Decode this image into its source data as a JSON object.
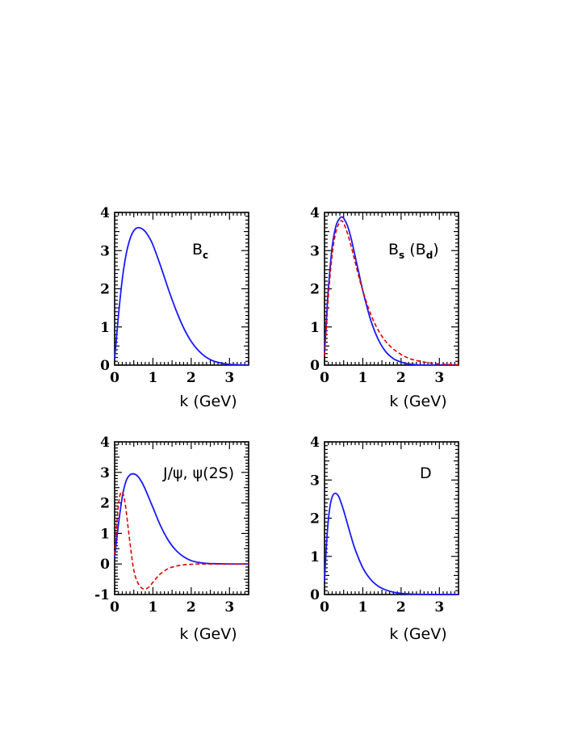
{
  "chart_data": [
    {
      "type": "line",
      "label": {
        "main": "B",
        "sub": "c",
        "suffix": ""
      },
      "xlabel": "k (GeV)",
      "xlim": [
        0,
        3.5
      ],
      "ylim": [
        0,
        4
      ],
      "xticks": [
        "0",
        "1",
        "2",
        "3"
      ],
      "yticks": [
        "0",
        "1",
        "2",
        "3",
        "4"
      ],
      "series": [
        {
          "style": "solid",
          "color": "#1a1aff",
          "x": [
            0,
            0.1,
            0.2,
            0.3,
            0.4,
            0.5,
            0.6,
            0.7,
            0.8,
            0.9,
            1.0,
            1.2,
            1.4,
            1.6,
            1.8,
            2.0,
            2.2,
            2.4,
            2.6,
            2.8,
            3.0,
            3.2,
            3.5
          ],
          "y": [
            0.15,
            1.3,
            2.25,
            2.9,
            3.3,
            3.52,
            3.6,
            3.58,
            3.5,
            3.35,
            3.15,
            2.6,
            2.0,
            1.45,
            0.98,
            0.62,
            0.37,
            0.2,
            0.1,
            0.05,
            0.02,
            0.01,
            0.0
          ]
        }
      ]
    },
    {
      "type": "line",
      "label": {
        "main": "B",
        "sub": "s",
        "suffix": " (B",
        "sub2": "d",
        "suffix2": ")"
      },
      "xlabel": "k (GeV)",
      "xlim": [
        0,
        3.5
      ],
      "ylim": [
        0,
        4
      ],
      "xticks": [
        "0",
        "1",
        "2",
        "3"
      ],
      "yticks": [
        "0",
        "1",
        "2",
        "3",
        "4"
      ],
      "series": [
        {
          "style": "solid",
          "color": "#1a1aff",
          "x": [
            0,
            0.05,
            0.1,
            0.2,
            0.3,
            0.4,
            0.45,
            0.5,
            0.6,
            0.7,
            0.8,
            0.9,
            1.0,
            1.2,
            1.4,
            1.6,
            1.8,
            2.0,
            2.2,
            2.4,
            2.6,
            3.0,
            3.5
          ],
          "y": [
            0.3,
            1.2,
            2.0,
            3.1,
            3.65,
            3.85,
            3.88,
            3.85,
            3.65,
            3.3,
            2.85,
            2.4,
            1.95,
            1.2,
            0.68,
            0.35,
            0.17,
            0.08,
            0.03,
            0.01,
            0.0,
            0.0,
            0.0
          ]
        },
        {
          "style": "dashed",
          "color": "#e00000",
          "x": [
            0,
            0.05,
            0.1,
            0.2,
            0.3,
            0.4,
            0.45,
            0.5,
            0.6,
            0.7,
            0.8,
            0.9,
            1.0,
            1.2,
            1.4,
            1.6,
            1.8,
            2.0,
            2.2,
            2.4,
            2.6,
            2.8,
            3.0,
            3.2,
            3.5
          ],
          "y": [
            0.25,
            1.0,
            1.8,
            2.9,
            3.5,
            3.75,
            3.78,
            3.72,
            3.45,
            3.1,
            2.7,
            2.3,
            1.95,
            1.35,
            0.92,
            0.62,
            0.42,
            0.28,
            0.18,
            0.12,
            0.08,
            0.05,
            0.03,
            0.02,
            0.01
          ]
        }
      ]
    },
    {
      "type": "line",
      "label": {
        "main": "J/ψ, ψ(2S)",
        "sub": "",
        "suffix": ""
      },
      "xlabel": "k (GeV)",
      "xlim": [
        0,
        3.5
      ],
      "ylim": [
        -1,
        4
      ],
      "xticks": [
        "0",
        "1",
        "2",
        "3"
      ],
      "yticks": [
        "-1",
        "0",
        "1",
        "2",
        "3",
        "4"
      ],
      "series": [
        {
          "style": "solid",
          "color": "#1a1aff",
          "x": [
            0,
            0.1,
            0.2,
            0.3,
            0.4,
            0.5,
            0.6,
            0.7,
            0.8,
            0.9,
            1.0,
            1.2,
            1.4,
            1.6,
            1.8,
            2.0,
            2.2,
            2.4,
            2.6,
            3.0,
            3.5
          ],
          "y": [
            0.2,
            1.3,
            2.2,
            2.72,
            2.92,
            2.95,
            2.88,
            2.7,
            2.45,
            2.15,
            1.85,
            1.25,
            0.78,
            0.45,
            0.24,
            0.11,
            0.05,
            0.02,
            0.01,
            0.0,
            0.0
          ]
        },
        {
          "style": "dashed",
          "color": "#e00000",
          "x": [
            0,
            0.05,
            0.1,
            0.15,
            0.2,
            0.25,
            0.3,
            0.4,
            0.5,
            0.6,
            0.7,
            0.8,
            0.9,
            1.0,
            1.1,
            1.2,
            1.4,
            1.6,
            1.8,
            2.0,
            2.2,
            2.5,
            3.0,
            3.5
          ],
          "y": [
            0.3,
            1.2,
            1.95,
            2.3,
            2.35,
            2.15,
            1.75,
            0.7,
            -0.2,
            -0.6,
            -0.78,
            -0.82,
            -0.75,
            -0.6,
            -0.45,
            -0.32,
            -0.15,
            -0.07,
            -0.03,
            -0.01,
            0.0,
            0.0,
            0.0,
            0.0
          ]
        }
      ]
    },
    {
      "type": "line",
      "label": {
        "main": "D",
        "sub": "",
        "suffix": ""
      },
      "xlabel": "k (GeV)",
      "xlim": [
        0,
        3.5
      ],
      "ylim": [
        0,
        4
      ],
      "xticks": [
        "0",
        "1",
        "2",
        "3"
      ],
      "yticks": [
        "0",
        "1",
        "2",
        "3",
        "4"
      ],
      "series": [
        {
          "style": "solid",
          "color": "#1a1aff",
          "x": [
            0,
            0.05,
            0.1,
            0.15,
            0.2,
            0.25,
            0.3,
            0.35,
            0.4,
            0.5,
            0.6,
            0.7,
            0.8,
            1.0,
            1.2,
            1.4,
            1.6,
            1.8,
            2.0,
            2.2,
            2.5,
            3.0,
            3.5
          ],
          "y": [
            0.35,
            1.3,
            1.95,
            2.35,
            2.56,
            2.64,
            2.65,
            2.6,
            2.5,
            2.2,
            1.85,
            1.5,
            1.18,
            0.7,
            0.4,
            0.22,
            0.12,
            0.06,
            0.03,
            0.015,
            0.005,
            0.0,
            0.0
          ]
        }
      ]
    }
  ]
}
